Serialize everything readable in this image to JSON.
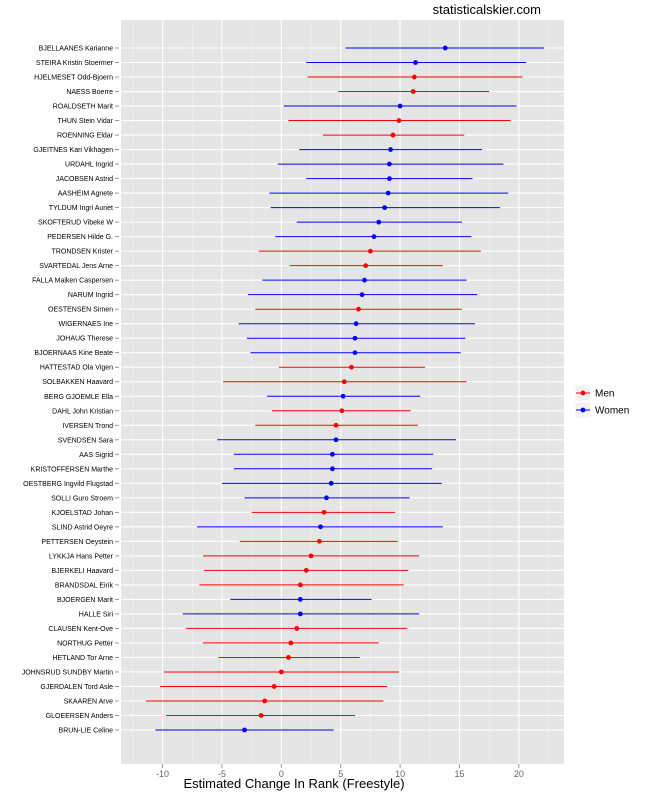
{
  "watermark": "statisticalskier.com",
  "chart_data": {
    "type": "scatter",
    "subtype": "point-with-interval",
    "xlabel": "Estimated Change In Rank (Freestyle)",
    "xlim": [
      -13.5,
      23.8
    ],
    "xticks": [
      -10,
      -5,
      0,
      5,
      10,
      15,
      20
    ],
    "grid": true,
    "legend": {
      "position": "right",
      "entries": [
        {
          "name": "Men",
          "color": "#FF0000"
        },
        {
          "name": "Women",
          "color": "#0000FF"
        }
      ]
    },
    "points": [
      {
        "label": "BJELLAANES Karianne",
        "group": "Women",
        "x": 13.8,
        "lo": 5.4,
        "hi": 22.1
      },
      {
        "label": "STEIRA Kristin Stoermer",
        "group": "Women",
        "x": 11.3,
        "lo": 2.1,
        "hi": 20.6
      },
      {
        "label": "HJELMESET Odd-Bjoern",
        "group": "Men",
        "x": 11.2,
        "lo": 2.2,
        "hi": 20.3
      },
      {
        "label": "NAESS Boerre",
        "group": "Men",
        "x": 11.1,
        "lo": 4.8,
        "hi": 17.5
      },
      {
        "label": "ROALDSETH Marit",
        "group": "Women",
        "x": 10.0,
        "lo": 0.2,
        "hi": 19.8
      },
      {
        "label": "THUN Stein Vidar",
        "group": "Men",
        "x": 9.9,
        "lo": 0.6,
        "hi": 19.3
      },
      {
        "label": "ROENNING Eldar",
        "group": "Men",
        "x": 9.4,
        "lo": 3.5,
        "hi": 15.4
      },
      {
        "label": "GJEITNES Kari Vikhagen",
        "group": "Women",
        "x": 9.2,
        "lo": 1.5,
        "hi": 16.9
      },
      {
        "label": "URDAHL Ingrid",
        "group": "Women",
        "x": 9.1,
        "lo": -0.3,
        "hi": 18.7
      },
      {
        "label": "JACOBSEN Astrid",
        "group": "Women",
        "x": 9.1,
        "lo": 2.1,
        "hi": 16.1
      },
      {
        "label": "AASHEIM Agnete",
        "group": "Women",
        "x": 9.0,
        "lo": -1.0,
        "hi": 19.1
      },
      {
        "label": "TYLDUM Ingri Aunet",
        "group": "Women",
        "x": 8.7,
        "lo": -0.9,
        "hi": 18.4
      },
      {
        "label": "SKOFTERUD Vibeke W",
        "group": "Women",
        "x": 8.2,
        "lo": 1.3,
        "hi": 15.2
      },
      {
        "label": "PEDERSEN Hilde G.",
        "group": "Women",
        "x": 7.8,
        "lo": -0.5,
        "hi": 16.0
      },
      {
        "label": "TRONDSEN Krister",
        "group": "Men",
        "x": 7.5,
        "lo": -1.9,
        "hi": 16.8
      },
      {
        "label": "SVARTEDAL Jens Arne",
        "group": "Men",
        "x": 7.1,
        "lo": 0.7,
        "hi": 13.6
      },
      {
        "label": "FALLA Maiken Caspersen",
        "group": "Women",
        "x": 7.0,
        "lo": -1.6,
        "hi": 15.6
      },
      {
        "label": "NARUM Ingrid",
        "group": "Women",
        "x": 6.8,
        "lo": -2.8,
        "hi": 16.5
      },
      {
        "label": "OESTENSEN Simen",
        "group": "Men",
        "x": 6.5,
        "lo": -2.2,
        "hi": 15.2
      },
      {
        "label": "WIGERNAES Ine",
        "group": "Women",
        "x": 6.3,
        "lo": -3.6,
        "hi": 16.3
      },
      {
        "label": "JOHAUG Therese",
        "group": "Women",
        "x": 6.2,
        "lo": -2.9,
        "hi": 15.5
      },
      {
        "label": "BJOERNAAS Kine Beate",
        "group": "Women",
        "x": 6.2,
        "lo": -2.6,
        "hi": 15.1
      },
      {
        "label": "HATTESTAD Ola Vigen",
        "group": "Men",
        "x": 5.9,
        "lo": -0.2,
        "hi": 12.1
      },
      {
        "label": "SOLBAKKEN Haavard",
        "group": "Men",
        "x": 5.3,
        "lo": -4.9,
        "hi": 15.6
      },
      {
        "label": "BERG GJOEMLE Ella",
        "group": "Women",
        "x": 5.2,
        "lo": -1.2,
        "hi": 11.7
      },
      {
        "label": "DAHL John Kristian",
        "group": "Men",
        "x": 5.1,
        "lo": -0.8,
        "hi": 10.9
      },
      {
        "label": "IVERSEN Trond",
        "group": "Men",
        "x": 4.6,
        "lo": -2.2,
        "hi": 11.5
      },
      {
        "label": "SVENDSEN Sara",
        "group": "Women",
        "x": 4.6,
        "lo": -5.4,
        "hi": 14.7
      },
      {
        "label": "AAS Sigrid",
        "group": "Women",
        "x": 4.3,
        "lo": -4.0,
        "hi": 12.8
      },
      {
        "label": "KRISTOFFERSEN Marthe",
        "group": "Women",
        "x": 4.3,
        "lo": -4.0,
        "hi": 12.7
      },
      {
        "label": "OESTBERG Ingvild Flugstad",
        "group": "Women",
        "x": 4.2,
        "lo": -5.0,
        "hi": 13.5
      },
      {
        "label": "SOLLI Guro Stroem",
        "group": "Women",
        "x": 3.8,
        "lo": -3.1,
        "hi": 10.8
      },
      {
        "label": "KJOELSTAD Johan",
        "group": "Men",
        "x": 3.6,
        "lo": -2.5,
        "hi": 9.6
      },
      {
        "label": "SLIND Astrid Oeyre",
        "group": "Women",
        "x": 3.3,
        "lo": -7.1,
        "hi": 13.6
      },
      {
        "label": "PETTERSEN Oeystein",
        "group": "Men",
        "x": 3.2,
        "lo": -3.5,
        "hi": 9.8
      },
      {
        "label": "LYKKJA Hans Petter",
        "group": "Men",
        "x": 2.5,
        "lo": -6.6,
        "hi": 11.6
      },
      {
        "label": "BJERKELI Haavard",
        "group": "Men",
        "x": 2.1,
        "lo": -6.5,
        "hi": 10.7
      },
      {
        "label": "BRANDSDAL Eirik",
        "group": "Men",
        "x": 1.6,
        "lo": -6.9,
        "hi": 10.3
      },
      {
        "label": "BJOERGEN Marit",
        "group": "Women",
        "x": 1.6,
        "lo": -4.3,
        "hi": 7.6
      },
      {
        "label": "HALLE Siri",
        "group": "Women",
        "x": 1.6,
        "lo": -8.3,
        "hi": 11.6
      },
      {
        "label": "CLAUSEN Kent-Ove",
        "group": "Men",
        "x": 1.3,
        "lo": -8.0,
        "hi": 10.6
      },
      {
        "label": "NORTHUG Petter",
        "group": "Men",
        "x": 0.8,
        "lo": -6.6,
        "hi": 8.2
      },
      {
        "label": "HETLAND Tor Arne",
        "group": "Men",
        "x": 0.6,
        "lo": -5.3,
        "hi": 6.6
      },
      {
        "label": "JOHNSRUD SUNDBY Martin",
        "group": "Men",
        "x": 0.0,
        "lo": -9.9,
        "hi": 9.9
      },
      {
        "label": "GJERDALEN Tord Asle",
        "group": "Men",
        "x": -0.6,
        "lo": -10.2,
        "hi": 8.9
      },
      {
        "label": "SKAAREN Arve",
        "group": "Men",
        "x": -1.4,
        "lo": -11.4,
        "hi": 8.6
      },
      {
        "label": "GLOEERSEN Anders",
        "group": "Men",
        "x": -1.7,
        "lo": -9.7,
        "hi": 6.2
      },
      {
        "label": "BRUN-LIE Celine",
        "group": "Women",
        "x": -3.1,
        "lo": -10.6,
        "hi": 4.4
      }
    ]
  }
}
